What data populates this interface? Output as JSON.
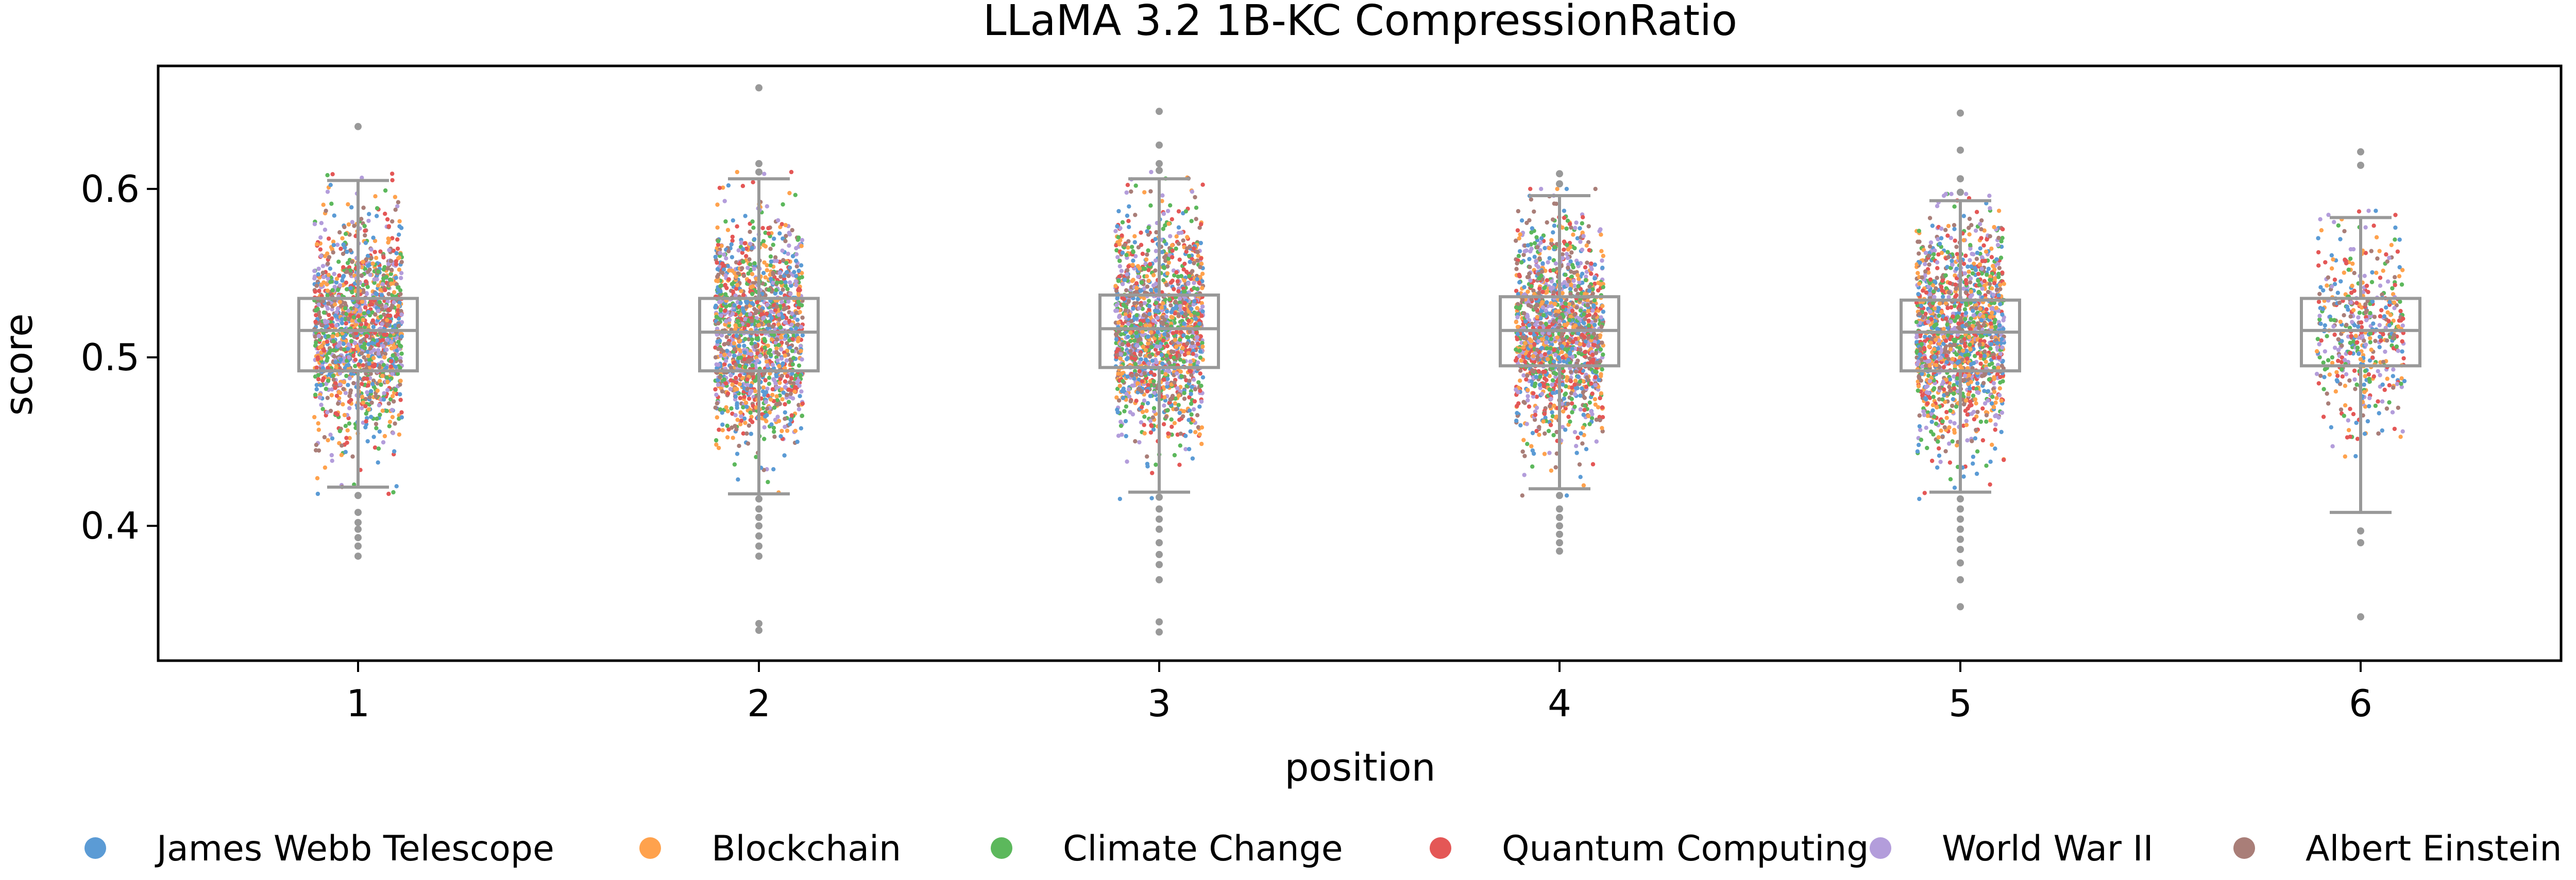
{
  "chart_data": {
    "type": "box_strip",
    "title": "LLaMA 3.2 1B-KC CompressionRatio",
    "xlabel": "position",
    "ylabel": "score",
    "categories": [
      "1",
      "2",
      "3",
      "4",
      "5",
      "6"
    ],
    "ylim": [
      0.32,
      0.673
    ],
    "yticks": [
      {
        "value": 0.4,
        "label": "0.4"
      },
      {
        "value": 0.5,
        "label": "0.5"
      },
      {
        "value": 0.6,
        "label": "0.6"
      }
    ],
    "box_color": "#999999",
    "boxes": [
      {
        "position": "1",
        "q1": 0.492,
        "median": 0.516,
        "q3": 0.535,
        "whisker_low": 0.423,
        "whisker_high": 0.605,
        "outliers": [
          0.637,
          0.418,
          0.408,
          0.402,
          0.398,
          0.393,
          0.388,
          0.382
        ]
      },
      {
        "position": "2",
        "q1": 0.492,
        "median": 0.515,
        "q3": 0.535,
        "whisker_low": 0.419,
        "whisker_high": 0.606,
        "outliers": [
          0.66,
          0.615,
          0.61,
          0.416,
          0.41,
          0.405,
          0.4,
          0.394,
          0.388,
          0.382,
          0.342,
          0.338
        ]
      },
      {
        "position": "3",
        "q1": 0.494,
        "median": 0.517,
        "q3": 0.537,
        "whisker_low": 0.42,
        "whisker_high": 0.606,
        "outliers": [
          0.646,
          0.626,
          0.615,
          0.611,
          0.417,
          0.41,
          0.404,
          0.398,
          0.39,
          0.383,
          0.377,
          0.368,
          0.343,
          0.337
        ]
      },
      {
        "position": "4",
        "q1": 0.495,
        "median": 0.516,
        "q3": 0.536,
        "whisker_low": 0.422,
        "whisker_high": 0.596,
        "outliers": [
          0.609,
          0.603,
          0.418,
          0.41,
          0.405,
          0.4,
          0.395,
          0.39,
          0.385
        ]
      },
      {
        "position": "5",
        "q1": 0.492,
        "median": 0.515,
        "q3": 0.534,
        "whisker_low": 0.42,
        "whisker_high": 0.593,
        "outliers": [
          0.645,
          0.623,
          0.606,
          0.598,
          0.416,
          0.41,
          0.404,
          0.398,
          0.392,
          0.386,
          0.378,
          0.368,
          0.352
        ]
      },
      {
        "position": "6",
        "q1": 0.495,
        "median": 0.516,
        "q3": 0.535,
        "whisker_low": 0.408,
        "whisker_high": 0.583,
        "outliers": [
          0.622,
          0.614,
          0.397,
          0.39,
          0.346
        ]
      }
    ],
    "strip_counts": [
      1500,
      1500,
      1500,
      1500,
      1500,
      480
    ],
    "series": [
      {
        "name": "James Webb Telescope",
        "color": "#5b9bd5"
      },
      {
        "name": "Blockchain",
        "color": "#ffa24d"
      },
      {
        "name": "Climate Change",
        "color": "#5cb85c"
      },
      {
        "name": "Quantum Computing",
        "color": "#e45756"
      },
      {
        "name": "World War II",
        "color": "#b39ddb"
      },
      {
        "name": "Albert Einstein",
        "color": "#a97e78"
      }
    ],
    "legend_position": "bottom"
  }
}
